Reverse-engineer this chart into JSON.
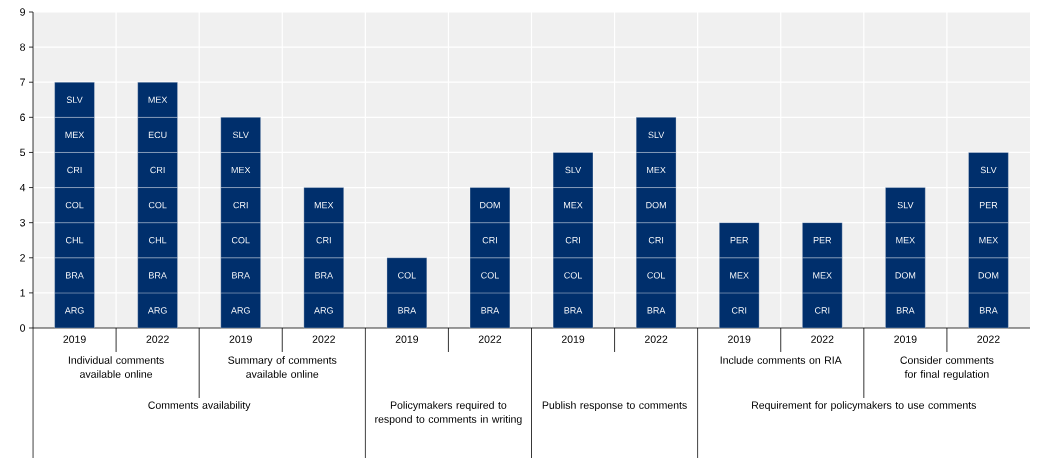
{
  "chart_data": {
    "type": "bar",
    "stacked": true,
    "grid": true,
    "categories": [
      "2019",
      "2022",
      "2019",
      "2022",
      "2019",
      "2022",
      "2019",
      "2022",
      "2019",
      "2022",
      "2019",
      "2022"
    ],
    "ylim": [
      0,
      9
    ],
    "yticks": [
      0,
      1,
      2,
      3,
      4,
      5,
      6,
      7,
      8,
      9
    ],
    "series": [
      {
        "color": "#002f6c",
        "values": [
          1,
          1,
          1,
          1,
          1,
          1,
          1,
          1,
          1,
          1,
          1,
          1
        ],
        "value_labels": [
          "ARG",
          "ARG",
          "ARG",
          "ARG",
          "BRA",
          "BRA",
          "BRA",
          "BRA",
          "CRI",
          "CRI",
          "BRA",
          "BRA"
        ]
      },
      {
        "color": "#002f6c",
        "values": [
          1,
          1,
          1,
          1,
          1,
          1,
          1,
          1,
          1,
          1,
          1,
          1
        ],
        "value_labels": [
          "BRA",
          "BRA",
          "BRA",
          "BRA",
          "COL",
          "COL",
          "COL",
          "COL",
          "MEX",
          "MEX",
          "DOM",
          "DOM"
        ]
      },
      {
        "color": "#002f6c",
        "values": [
          1,
          1,
          1,
          1,
          null,
          1,
          1,
          1,
          1,
          1,
          1,
          1
        ],
        "value_labels": [
          "CHL",
          "CHL",
          "COL",
          "CRI",
          null,
          "CRI",
          "CRI",
          "CRI",
          "PER",
          "PER",
          "MEX",
          "MEX"
        ]
      },
      {
        "color": "#002f6c",
        "values": [
          1,
          1,
          1,
          1,
          null,
          1,
          1,
          1,
          null,
          null,
          1,
          1
        ],
        "value_labels": [
          "COL",
          "COL",
          "CRI",
          "MEX",
          null,
          "DOM",
          "MEX",
          "DOM",
          null,
          null,
          "SLV",
          "PER"
        ]
      },
      {
        "color": "#002f6c",
        "values": [
          1,
          1,
          1,
          null,
          null,
          null,
          1,
          1,
          null,
          null,
          null,
          1
        ],
        "value_labels": [
          "CRI",
          "CRI",
          "MEX",
          null,
          null,
          null,
          "SLV",
          "MEX",
          null,
          null,
          null,
          "SLV"
        ]
      },
      {
        "color": "#002f6c",
        "values": [
          1,
          1,
          1,
          null,
          null,
          null,
          null,
          1,
          null,
          null,
          null,
          null
        ],
        "value_labels": [
          "MEX",
          "ECU",
          "SLV",
          null,
          null,
          null,
          null,
          "SLV",
          null,
          null,
          null,
          null
        ]
      },
      {
        "color": "#002f6c",
        "values": [
          1,
          1,
          null,
          null,
          null,
          null,
          null,
          null,
          null,
          null,
          null,
          null
        ],
        "value_labels": [
          "SLV",
          "MEX",
          null,
          null,
          null,
          null,
          null,
          null,
          null,
          null,
          null,
          null
        ]
      }
    ],
    "annotations": [
      "Individual comments available online",
      "Summary of comments available online",
      "Include comments on RIA",
      "Consider comments for final regulation",
      "Comments availability",
      "Policymakers required to respond to comments in writing",
      "Publish response to comments",
      "Requirement for policymakers to use comments"
    ]
  }
}
